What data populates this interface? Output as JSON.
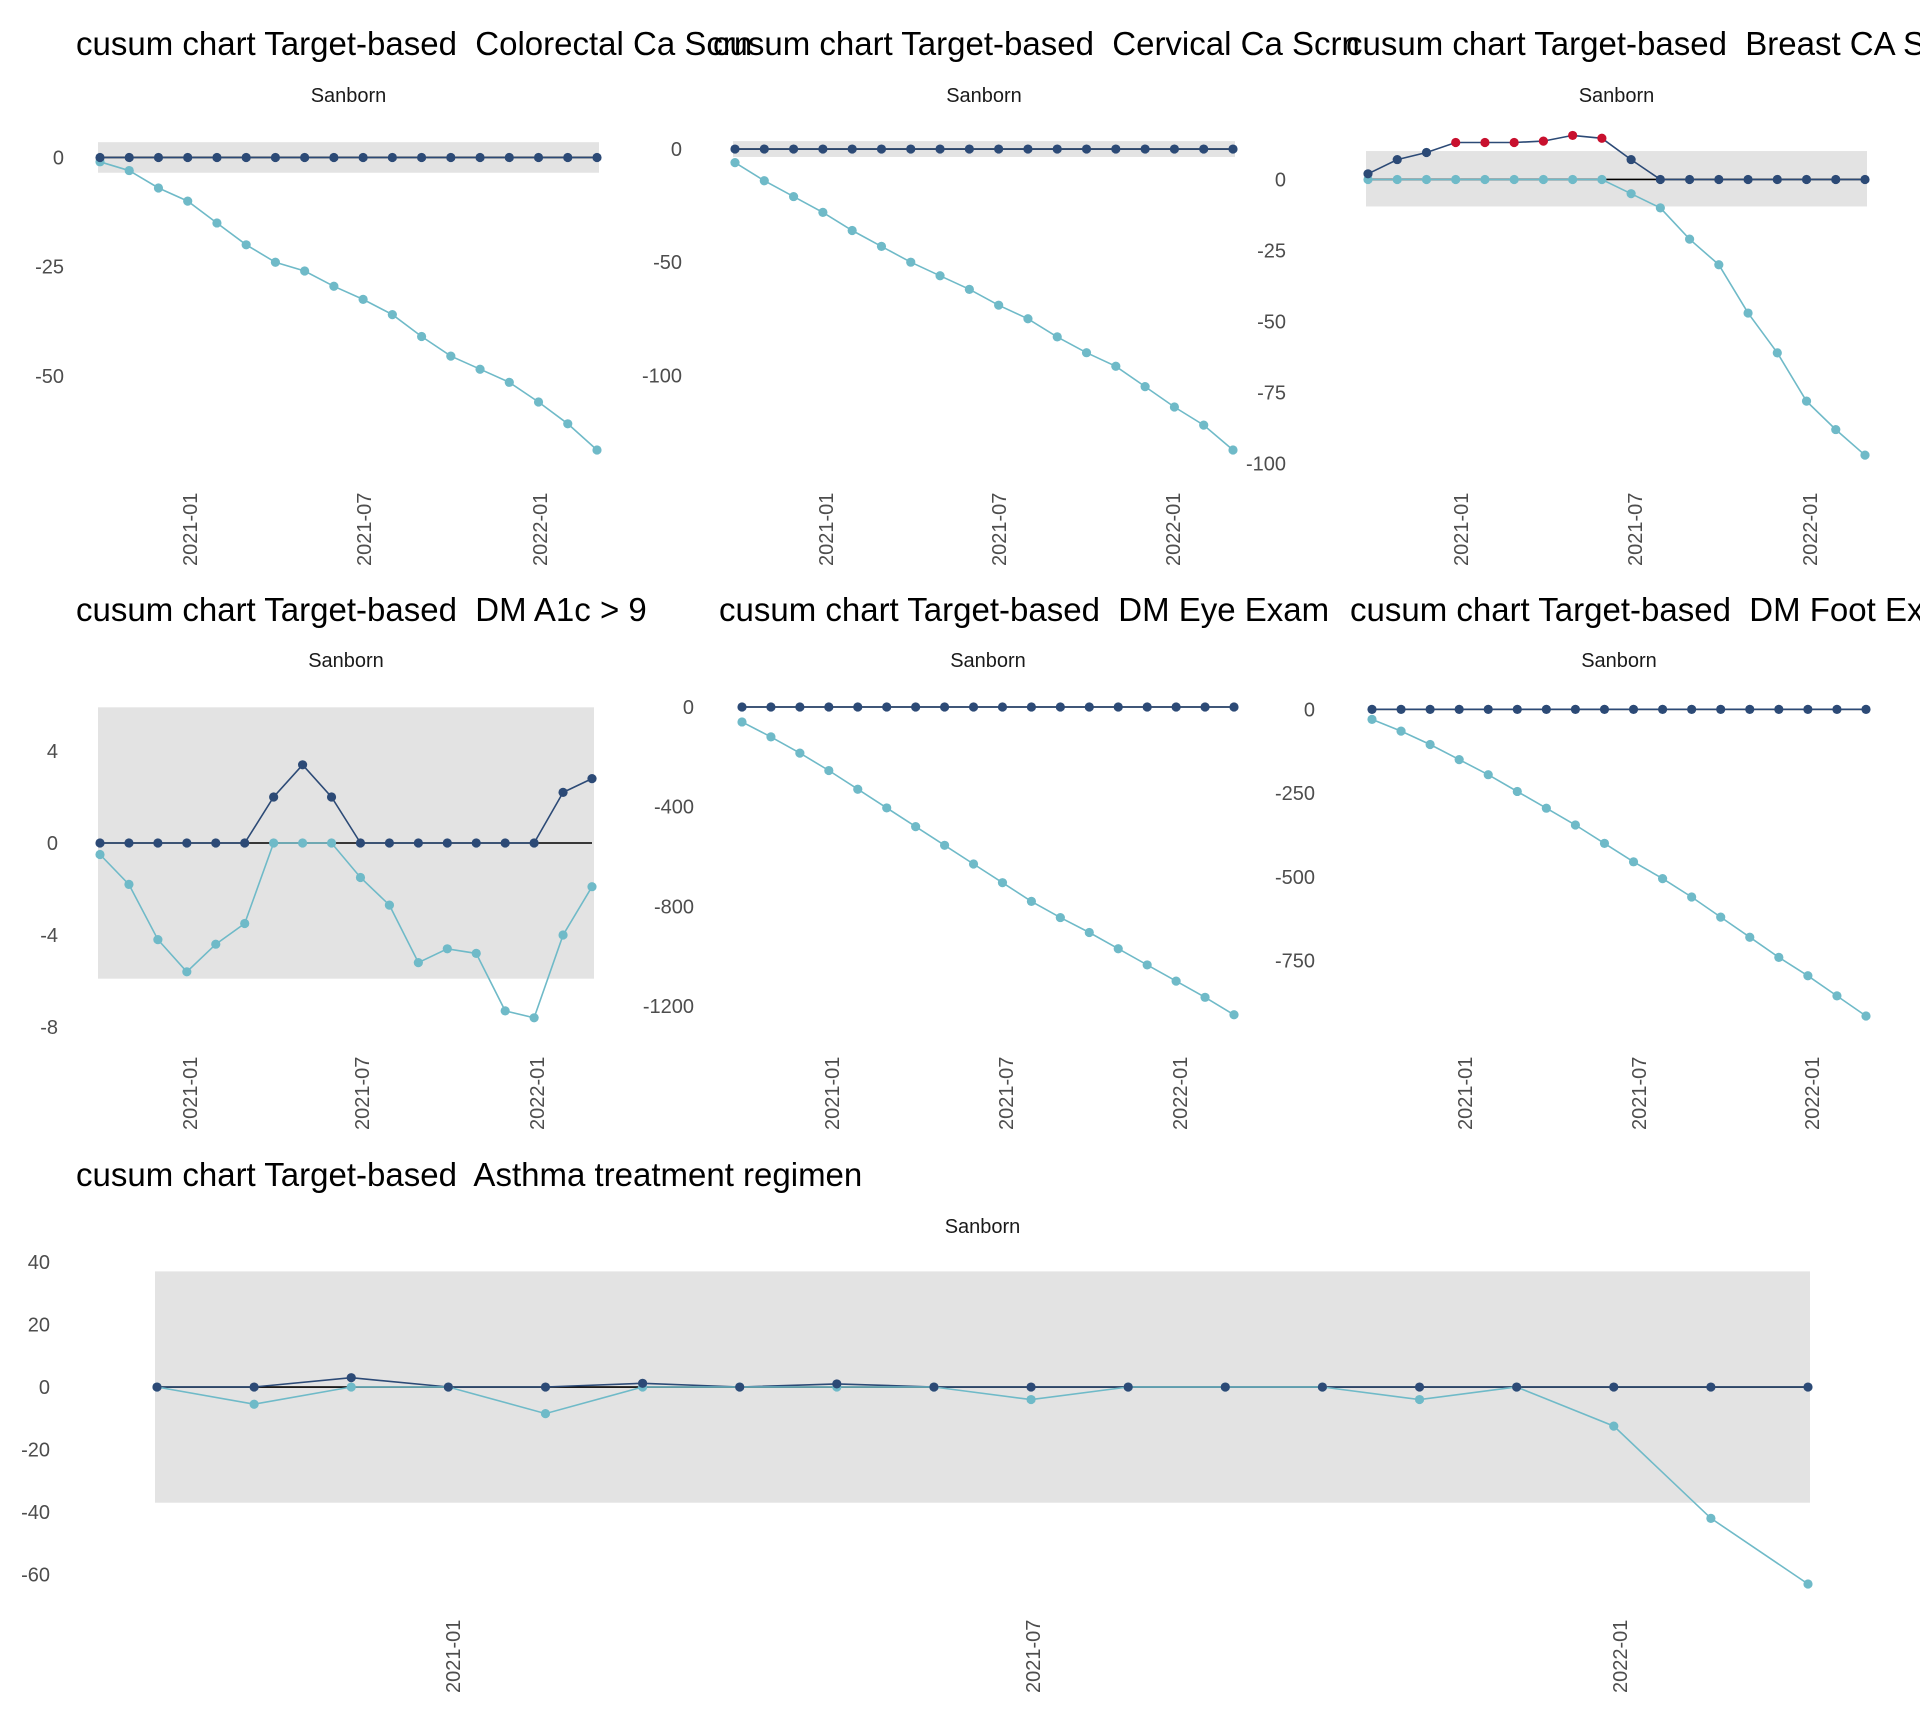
{
  "colors": {
    "band": "#e3e3e3",
    "upper": "#2c4a76",
    "lower": "#6fbac8",
    "signal": "#c8102e",
    "axis_text": "#4d4d4d",
    "zero_line": "#000000"
  },
  "chart_data": [
    {
      "type": "line",
      "title": "cusum chart Target-based  Colorectal Ca Scrn",
      "facet": "Sanborn",
      "y_ticks": [
        0,
        -25,
        -50
      ],
      "ylim": [
        -67,
        4
      ],
      "x_ticks": [
        "2021-01",
        "2021-07",
        "2022-01"
      ],
      "limits": [
        3.5,
        -3.5
      ],
      "x": [
        0,
        1,
        2,
        3,
        4,
        5,
        6,
        7,
        8,
        9,
        10,
        11,
        12,
        13,
        14,
        15,
        16,
        17
      ],
      "series": [
        {
          "name": "upper",
          "values": [
            0,
            0,
            0,
            0,
            0,
            0,
            0,
            0,
            0,
            0,
            0,
            0,
            0,
            0,
            0,
            0,
            0,
            0
          ]
        },
        {
          "name": "lower",
          "values": [
            -1,
            -3,
            -7,
            -10,
            -15,
            -20,
            -24,
            -26,
            -29.5,
            -32.5,
            -36,
            -41,
            -45.5,
            -48.5,
            -51.5,
            -56,
            -61,
            -67
          ]
        }
      ]
    },
    {
      "type": "line",
      "title": "cusum chart Target-based  Cervical Ca Scrn",
      "facet": "Sanborn",
      "y_ticks": [
        0,
        -50,
        -100
      ],
      "ylim": [
        -133,
        4
      ],
      "x_ticks": [
        "2021-01",
        "2021-07",
        "2022-01"
      ],
      "limits": [
        3.5,
        -3.5
      ],
      "x": [
        0,
        1,
        2,
        3,
        4,
        5,
        6,
        7,
        8,
        9,
        10,
        11,
        12,
        13,
        14,
        15,
        16,
        17
      ],
      "series": [
        {
          "name": "upper",
          "values": [
            0,
            0,
            0,
            0,
            0,
            0,
            0,
            0,
            0,
            0,
            0,
            0,
            0,
            0,
            0,
            0,
            0,
            0
          ]
        },
        {
          "name": "lower",
          "values": [
            -6,
            -14,
            -21,
            -28,
            -36,
            -43,
            -50,
            -56,
            -62,
            -69,
            -75,
            -83,
            -90,
            -96,
            -105,
            -114,
            -122,
            -133
          ]
        }
      ]
    },
    {
      "type": "line",
      "title": "cusum chart Target-based  Breast CA Scrn",
      "facet": "Sanborn",
      "y_ticks": [
        0,
        -25,
        -50,
        -75,
        -100
      ],
      "ylim": [
        -98,
        16
      ],
      "x_ticks": [
        "2021-01",
        "2021-07",
        "2022-01"
      ],
      "limits": [
        10,
        -9.5
      ],
      "x": [
        0,
        1,
        2,
        3,
        4,
        5,
        6,
        7,
        8,
        9,
        10,
        11,
        12,
        13,
        14,
        15,
        16,
        17
      ],
      "signal_upper": [
        3,
        4,
        5,
        6,
        7,
        8
      ],
      "series": [
        {
          "name": "upper",
          "values": [
            2,
            7,
            9.5,
            13,
            13,
            13,
            13.5,
            15.5,
            14.5,
            7,
            0,
            0,
            0,
            0,
            0,
            0,
            0,
            0
          ]
        },
        {
          "name": "lower",
          "values": [
            0,
            0,
            0,
            0,
            0,
            0,
            0,
            0,
            0,
            -5,
            -10,
            -21,
            -30,
            -47,
            -61,
            -78,
            -88,
            -97
          ]
        }
      ]
    },
    {
      "type": "line",
      "title": "cusum chart Target-based  DM A1c > 9",
      "facet": "Sanborn",
      "y_ticks": [
        4,
        0,
        -4,
        -8
      ],
      "ylim": [
        -8,
        6
      ],
      "x_ticks": [
        "2021-01",
        "2021-07",
        "2022-01"
      ],
      "limits": [
        5.9,
        -5.9
      ],
      "x": [
        0,
        1,
        2,
        3,
        4,
        5,
        6,
        7,
        8,
        9,
        10,
        11,
        12,
        13,
        14,
        15,
        16,
        17
      ],
      "series": [
        {
          "name": "upper",
          "values": [
            0,
            0,
            0,
            0,
            0,
            0,
            2,
            3.4,
            2,
            0,
            0,
            0,
            0,
            0,
            0,
            0,
            2.2,
            2.8
          ]
        },
        {
          "name": "lower",
          "values": [
            -0.5,
            -1.8,
            -4.2,
            -5.6,
            -4.4,
            -3.5,
            0,
            0,
            0,
            -1.5,
            -2.7,
            -5.2,
            -4.6,
            -4.8,
            -7.3,
            -7.6,
            -4,
            -1.9
          ]
        }
      ]
    },
    {
      "type": "line",
      "title": "cusum chart Target-based  DM Eye Exam",
      "facet": "Sanborn",
      "y_ticks": [
        0,
        -400,
        -800,
        -1200
      ],
      "ylim": [
        -1240,
        4
      ],
      "x_ticks": [
        "2021-01",
        "2021-07",
        "2022-01"
      ],
      "limits": [
        0,
        0
      ],
      "x": [
        0,
        1,
        2,
        3,
        4,
        5,
        6,
        7,
        8,
        9,
        10,
        11,
        12,
        13,
        14,
        15,
        16,
        17
      ],
      "series": [
        {
          "name": "upper",
          "values": [
            0,
            0,
            0,
            0,
            0,
            0,
            0,
            0,
            0,
            0,
            0,
            0,
            0,
            0,
            0,
            0,
            0,
            0
          ]
        },
        {
          "name": "lower",
          "values": [
            -60,
            -120,
            -185,
            -255,
            -330,
            -405,
            -480,
            -555,
            -630,
            -705,
            -780,
            -845,
            -905,
            -970,
            -1035,
            -1100,
            -1165,
            -1235
          ]
        }
      ]
    },
    {
      "type": "line",
      "title": "cusum chart Target-based  DM Foot Exam",
      "facet": "Sanborn",
      "y_ticks": [
        0,
        -250,
        -500,
        -750
      ],
      "ylim": [
        -915,
        4
      ],
      "x_ticks": [
        "2021-01",
        "2021-07",
        "2022-01"
      ],
      "limits": [
        0,
        0
      ],
      "x": [
        0,
        1,
        2,
        3,
        4,
        5,
        6,
        7,
        8,
        9,
        10,
        11,
        12,
        13,
        14,
        15,
        16,
        17
      ],
      "series": [
        {
          "name": "upper",
          "values": [
            0,
            0,
            0,
            0,
            0,
            0,
            0,
            0,
            0,
            0,
            0,
            0,
            0,
            0,
            0,
            0,
            0,
            0
          ]
        },
        {
          "name": "lower",
          "values": [
            -30,
            -65,
            -105,
            -150,
            -195,
            -245,
            -295,
            -345,
            -400,
            -455,
            -505,
            -560,
            -620,
            -680,
            -740,
            -795,
            -855,
            -915
          ]
        }
      ]
    },
    {
      "type": "line",
      "title": "cusum chart Target-based  Asthma treatment regimen",
      "facet": "Sanborn",
      "y_ticks": [
        40,
        20,
        0,
        -20,
        -40,
        -60
      ],
      "ylim": [
        -63,
        40
      ],
      "x_ticks": [
        "2021-01",
        "2021-07",
        "2022-01"
      ],
      "limits": [
        37,
        -37
      ],
      "x": [
        0,
        1,
        2,
        3,
        4,
        5,
        6,
        7,
        8,
        9,
        10,
        11,
        12,
        13,
        14,
        15,
        16,
        17
      ],
      "series": [
        {
          "name": "upper",
          "values": [
            0,
            0,
            3,
            0,
            0,
            1.2,
            0,
            1,
            0,
            0,
            0,
            0,
            0,
            0,
            0,
            0,
            0,
            0
          ]
        },
        {
          "name": "lower",
          "values": [
            0,
            -5.5,
            0,
            0,
            -8.5,
            0,
            0,
            0,
            0,
            -4,
            0,
            0,
            0,
            -4,
            0,
            -12.5,
            -42,
            -63
          ]
        }
      ]
    }
  ]
}
